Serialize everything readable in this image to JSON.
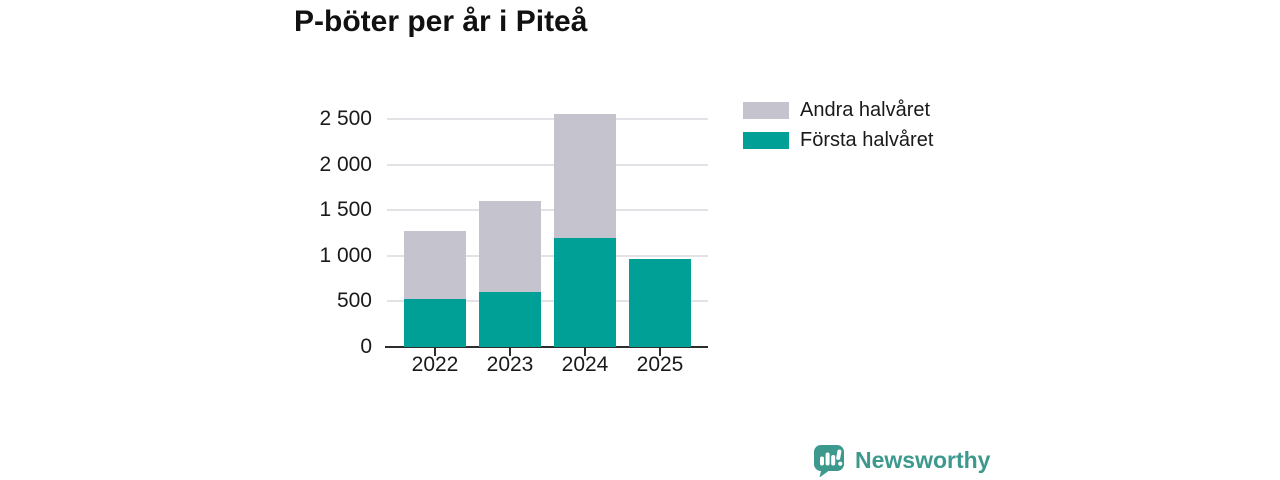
{
  "title": "P-böter per år i Piteå",
  "chart_data": {
    "type": "bar",
    "stacked": true,
    "title": "P-böter per år i Piteå",
    "xlabel": "",
    "ylabel": "",
    "categories": [
      "2022",
      "2023",
      "2024",
      "2025"
    ],
    "series": [
      {
        "name": "Första halvåret",
        "color": "#00A096",
        "values": [
          530,
          600,
          1190,
          960
        ]
      },
      {
        "name": "Andra halvåret",
        "color": "#C5C3CE",
        "values": [
          740,
          1000,
          1360,
          0
        ]
      }
    ],
    "totals": [
      1270,
      1600,
      2550,
      960
    ],
    "ylim": [
      0,
      2550
    ],
    "yticks": [
      0,
      500,
      1000,
      1500,
      2000,
      2500
    ],
    "ytick_labels": [
      "0",
      "500",
      "1 000",
      "1 500",
      "2 000",
      "2 500"
    ],
    "grid": true,
    "legend_position": "top-right"
  },
  "legend": {
    "items": [
      {
        "label": "Andra halvåret",
        "color": "#C5C3CE"
      },
      {
        "label": "Första halvåret",
        "color": "#00A096"
      }
    ]
  },
  "footer": {
    "brand": "Newsworthy",
    "brand_color": "#3D998E",
    "logo_icon": "newsworthy-speech-bubble-bar-chart-icon"
  },
  "colors": {
    "first_half": "#00A096",
    "second_half": "#C5C3CE",
    "gridline": "#E3E2E6",
    "axis": "#2D2D2D",
    "text": "#1A1A1A"
  }
}
